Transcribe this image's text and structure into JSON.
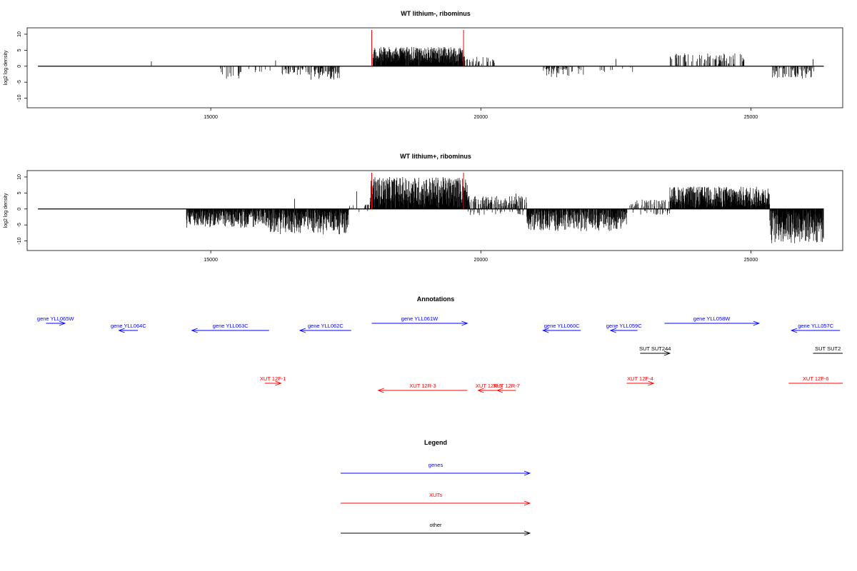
{
  "colors": {
    "genes": "#0000ff",
    "xuts": "#ff0000",
    "other": "#000000",
    "marker": "#ff0000",
    "frame": "#000000"
  },
  "chart_data": [
    {
      "type": "bar",
      "title": "WT lithium-, ribominus",
      "ylabel": "log2 log density",
      "xlim": [
        11600,
        26700
      ],
      "ylim": [
        -13,
        12
      ],
      "xticks": [
        15000,
        20000,
        25000
      ],
      "yticks": [
        -10,
        -5,
        0,
        5,
        10
      ],
      "zero_line": [
        11800,
        26350
      ],
      "markers_x": [
        17980,
        19680
      ],
      "segments": [
        {
          "x0": 15100,
          "x1": 15600,
          "lo": -4,
          "hi": 0,
          "density": 0.18
        },
        {
          "x0": 15700,
          "x1": 16200,
          "lo": -2.5,
          "hi": 0,
          "density": 0.1
        },
        {
          "x0": 16300,
          "x1": 16850,
          "lo": -3,
          "hi": 0,
          "density": 0.3
        },
        {
          "x0": 16850,
          "x1": 17400,
          "lo": -4.5,
          "hi": 0,
          "density": 0.55
        },
        {
          "x0": 18000,
          "x1": 19700,
          "lo": 1,
          "hi": 6,
          "density": 0.95
        },
        {
          "x0": 19700,
          "x1": 20300,
          "lo": 0.5,
          "hi": 3,
          "density": 0.15
        },
        {
          "x0": 21100,
          "x1": 21900,
          "lo": -3.5,
          "hi": 0,
          "density": 0.35
        },
        {
          "x0": 21900,
          "x1": 22900,
          "lo": -2,
          "hi": 0,
          "density": 0.1
        },
        {
          "x0": 23500,
          "x1": 24100,
          "lo": 0.5,
          "hi": 4,
          "density": 0.25
        },
        {
          "x0": 24100,
          "x1": 24900,
          "lo": 0.5,
          "hi": 4,
          "density": 0.35
        },
        {
          "x0": 25400,
          "x1": 26200,
          "lo": -4,
          "hi": 0,
          "density": 0.4
        }
      ],
      "extra_bars": [
        {
          "x": 13900,
          "y": 1.5
        },
        {
          "x": 16200,
          "y": 1.8
        },
        {
          "x": 22500,
          "y": 2.3
        },
        {
          "x": 26150,
          "y": 2.2
        }
      ]
    },
    {
      "type": "bar",
      "title": "WT lithium+, ribominus",
      "ylabel": "log2 log density",
      "xlim": [
        11600,
        26700
      ],
      "ylim": [
        -13,
        12
      ],
      "xticks": [
        15000,
        20000,
        25000
      ],
      "yticks": [
        -10,
        -5,
        0,
        5,
        10
      ],
      "zero_line": [
        11800,
        26350
      ],
      "markers_x": [
        17980,
        19680
      ],
      "segments": [
        {
          "x0": 14550,
          "x1": 16100,
          "lo": -6,
          "hi": 0,
          "density": 0.95
        },
        {
          "x0": 16100,
          "x1": 17550,
          "lo": -8,
          "hi": 0,
          "density": 1.0
        },
        {
          "x0": 17550,
          "x1": 17950,
          "lo": -1,
          "hi": 2,
          "density": 0.25
        },
        {
          "x0": 17950,
          "x1": 19750,
          "lo": 0,
          "hi": 10,
          "density": 1.0
        },
        {
          "x0": 19750,
          "x1": 20850,
          "lo": -2,
          "hi": 4,
          "density": 0.7
        },
        {
          "x0": 20850,
          "x1": 22700,
          "lo": -7,
          "hi": 0,
          "density": 0.95
        },
        {
          "x0": 22700,
          "x1": 23500,
          "lo": -2,
          "hi": 3,
          "density": 0.55
        },
        {
          "x0": 23500,
          "x1": 25350,
          "lo": 0,
          "hi": 7,
          "density": 1.0
        },
        {
          "x0": 25350,
          "x1": 26350,
          "lo": -11,
          "hi": 0,
          "density": 1.0
        }
      ],
      "extra_bars": [
        {
          "x": 16550,
          "y": 3.2
        },
        {
          "x": 17700,
          "y": 5.5
        },
        {
          "x": 20650,
          "y": 4.8
        }
      ]
    }
  ],
  "annotations": {
    "title": "Annotations",
    "rows": [
      {
        "label": "gene YLL065W",
        "color": "blue",
        "row": 0,
        "x0": 11950,
        "x1": 12300,
        "dir": "right"
      },
      {
        "label": "gene YLL064C",
        "color": "blue",
        "row": 1,
        "x0": 13300,
        "x1": 13650,
        "dir": "left"
      },
      {
        "label": "gene YLL063C",
        "color": "blue",
        "row": 1,
        "x0": 14650,
        "x1": 16080,
        "dir": "left"
      },
      {
        "label": "gene YLL062C",
        "color": "blue",
        "row": 1,
        "x0": 16650,
        "x1": 17600,
        "dir": "left"
      },
      {
        "label": "gene YLL061W",
        "color": "blue",
        "row": 0,
        "x0": 17980,
        "x1": 19750,
        "dir": "right"
      },
      {
        "label": "gene YLL060C",
        "color": "blue",
        "row": 1,
        "x0": 21150,
        "x1": 21850,
        "dir": "left"
      },
      {
        "label": "gene YLL059C",
        "color": "blue",
        "row": 1,
        "x0": 22400,
        "x1": 22900,
        "dir": "left"
      },
      {
        "label": "gene YLL058W",
        "color": "blue",
        "row": 0,
        "x0": 23400,
        "x1": 25150,
        "dir": "right"
      },
      {
        "label": "gene YLL057C",
        "color": "blue",
        "row": 1,
        "x0": 25750,
        "x1": 26650,
        "dir": "left"
      },
      {
        "label": "SUT SUT244",
        "color": "black",
        "row": 2,
        "x0": 22950,
        "x1": 23500,
        "dir": "right"
      },
      {
        "label": "SUT SUT2",
        "color": "black",
        "row": 2,
        "x0": 26150,
        "x1": 26700,
        "dir": "none"
      },
      {
        "label": "XUT 12F-1",
        "color": "red",
        "row": 3,
        "x0": 16000,
        "x1": 16300,
        "dir": "right"
      },
      {
        "label": "XUT 12R-3",
        "color": "red",
        "row": 4,
        "x0": 18100,
        "x1": 19750,
        "dir": "left"
      },
      {
        "label": "XUT 12R-5",
        "color": "red",
        "row": 4,
        "x0": 19950,
        "x1": 20350,
        "dir": "left"
      },
      {
        "label": "XUT 12R-7",
        "color": "red",
        "row": 4,
        "x0": 20300,
        "x1": 20650,
        "dir": "left"
      },
      {
        "label": "XUT 12F-4",
        "color": "red",
        "row": 3,
        "x0": 22700,
        "x1": 23200,
        "dir": "right"
      },
      {
        "label": "XUT 12F-6",
        "color": "red",
        "row": 3,
        "x0": 25700,
        "x1": 26700,
        "dir": "none"
      }
    ]
  },
  "legend": {
    "title": "Legend",
    "items": [
      {
        "label": "genes",
        "color": "blue"
      },
      {
        "label": "XUTs",
        "color": "red"
      },
      {
        "label": "other",
        "color": "black"
      }
    ]
  }
}
